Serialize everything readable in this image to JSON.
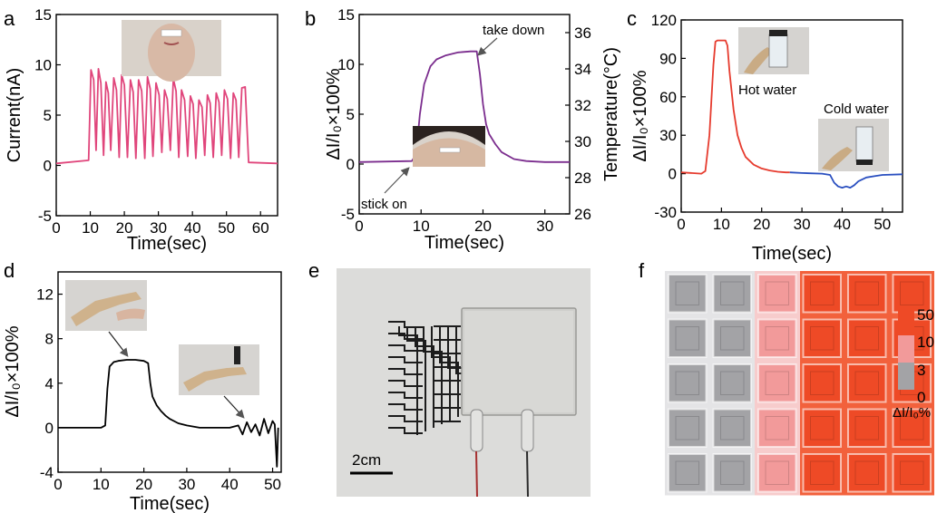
{
  "colors": {
    "pink": "#e0457b",
    "purple": "#7b2d8e",
    "red": "#e63b2e",
    "blue": "#2a4fc0",
    "black": "#000000",
    "grey_cell": "#a3a3a6",
    "pink_cell": "#f29a9a",
    "red_cell": "#ee4a26"
  },
  "panels": {
    "a": {
      "label": "a",
      "xlabel": "Time(sec)",
      "ylabel": "Current(nA)"
    },
    "b": {
      "label": "b",
      "xlabel": "Time(sec)",
      "ylabel_left": "ΔI/I₀×100%",
      "ylabel_right": "Temperature(°C)",
      "annotation_take_down": "take down",
      "annotation_stick_on": "stick on"
    },
    "c": {
      "label": "c",
      "xlabel": "Time(sec)",
      "ylabel": "ΔI/I₀×100%",
      "annotation_hot": "Hot water",
      "annotation_cold": "Cold water"
    },
    "d": {
      "label": "d",
      "xlabel": "Time(sec)",
      "ylabel": "ΔI/I₀×100%"
    },
    "e": {
      "label": "e",
      "scale_bar": "2cm"
    },
    "f": {
      "label": "f",
      "colorbar_ticks": [
        "50",
        "10",
        "3",
        "0"
      ],
      "colorbar_label": "ΔI/I₀%"
    }
  },
  "chart_data": [
    {
      "id": "a",
      "type": "line",
      "xlabel": "Time(sec)",
      "ylabel": "Current(nA)",
      "xlim": [
        0,
        65
      ],
      "ylim": [
        -5,
        15
      ],
      "xticks": [
        0,
        10,
        20,
        30,
        40,
        50,
        60
      ],
      "yticks": [
        -5,
        0,
        5,
        10,
        15
      ],
      "series": [
        {
          "color": "#e0457b",
          "x": [
            0,
            9.5,
            10.2,
            11,
            11.7,
            12.4,
            13.1,
            13.9,
            14.6,
            15.3,
            16,
            16.9,
            17.7,
            18.5,
            19.2,
            20,
            20.9,
            21.8,
            22.6,
            23.4,
            24.2,
            25.1,
            26,
            26.8,
            27.6,
            28.4,
            29.3,
            30.2,
            31,
            31.8,
            32.6,
            33.5,
            34.4,
            35.2,
            36,
            36.8,
            37.7,
            38.6,
            39.4,
            40.2,
            41,
            41.9,
            42.8,
            43.6,
            44.4,
            45.2,
            46.1,
            47,
            47.8,
            48.6,
            49.4,
            50.3,
            51.2,
            52,
            52.8,
            53.6,
            54.5,
            55.5,
            56.5,
            65
          ],
          "y": [
            0.2,
            0.5,
            9.5,
            8.5,
            1.5,
            9.6,
            8.2,
            1,
            8.3,
            7.2,
            1.5,
            8.7,
            7.5,
            0.8,
            9,
            8,
            0.8,
            8.5,
            7.3,
            0.7,
            8.5,
            7.4,
            0.7,
            8.8,
            7.6,
            0.9,
            8.2,
            7,
            1.3,
            7.5,
            6.6,
            1.5,
            8.6,
            7.4,
            0.8,
            7.5,
            6.5,
            0.9,
            6.9,
            6.1,
            0.7,
            6.5,
            5.8,
            1,
            7,
            6.2,
            0.8,
            7.2,
            6.3,
            1,
            7.5,
            6.6,
            0.7,
            7.2,
            6.5,
            0.8,
            7.7,
            7.8,
            0.3,
            0.2
          ]
        }
      ]
    },
    {
      "id": "b",
      "type": "line",
      "xlabel": "Time(sec)",
      "ylabel": "ΔI/I₀×100%",
      "ylabel_right": "Temperature(°C)",
      "xlim": [
        0,
        34
      ],
      "ylim": [
        -5,
        15
      ],
      "ylim_right": [
        26,
        37
      ],
      "xticks": [
        0,
        10,
        20,
        30
      ],
      "yticks": [
        -5,
        0,
        5,
        10,
        15
      ],
      "yticks_right": [
        26,
        28,
        30,
        32,
        34,
        36
      ],
      "series": [
        {
          "color": "#7b2d8e",
          "x": [
            0,
            8.5,
            9.2,
            9.8,
            10.5,
            11.5,
            12.5,
            14,
            16,
            18,
            19,
            19.5,
            20,
            20.5,
            21,
            22,
            23,
            25,
            27,
            30,
            34
          ],
          "y": [
            0.2,
            0.3,
            1,
            5,
            8,
            9.8,
            10.5,
            10.9,
            11.2,
            11.3,
            11.3,
            9,
            6,
            4,
            3,
            2,
            1.2,
            0.5,
            0.3,
            0.2,
            0.2
          ]
        }
      ]
    },
    {
      "id": "c",
      "type": "line",
      "xlabel": "Time(sec)",
      "ylabel": "ΔI/I₀×100%",
      "xlim": [
        0,
        55
      ],
      "ylim": [
        -30,
        120
      ],
      "xticks": [
        0,
        10,
        20,
        30,
        40,
        50
      ],
      "yticks": [
        -30,
        0,
        30,
        60,
        90,
        120
      ],
      "series": [
        {
          "name": "hot",
          "color": "#e63b2e",
          "x": [
            0,
            5,
            6,
            7,
            8,
            8.5,
            9,
            10,
            11,
            11.5,
            12,
            13,
            14,
            15,
            16,
            18,
            20,
            22,
            24,
            26,
            27
          ],
          "y": [
            1,
            0,
            2,
            30,
            85,
            103,
            104,
            104,
            104,
            100,
            80,
            50,
            30,
            20,
            13,
            7,
            4,
            2.5,
            1.5,
            1,
            1
          ]
        },
        {
          "name": "cold",
          "color": "#2a4fc0",
          "x": [
            27,
            30,
            35,
            37,
            38,
            39,
            40,
            41,
            42,
            43,
            44,
            46,
            48,
            50,
            55
          ],
          "y": [
            1,
            0.5,
            0,
            -1,
            -7,
            -10,
            -11,
            -10,
            -11,
            -9,
            -6,
            -3,
            -2,
            -1,
            -0.5
          ]
        }
      ]
    },
    {
      "id": "d",
      "type": "line",
      "xlabel": "Time(sec)",
      "ylabel": "ΔI/I₀×100%",
      "xlim": [
        0,
        52
      ],
      "ylim": [
        -4,
        14
      ],
      "xticks": [
        0,
        10,
        20,
        30,
        40,
        50
      ],
      "yticks": [
        -4,
        0,
        4,
        8,
        12
      ],
      "series": [
        {
          "color": "#000000",
          "x": [
            0,
            10,
            11,
            11.5,
            12,
            13,
            14,
            16,
            18,
            20,
            21,
            21.5,
            22,
            23,
            24,
            25,
            26,
            28,
            30,
            33,
            36,
            40,
            42,
            43,
            44,
            45,
            46,
            47,
            48,
            49,
            50,
            50.5,
            51,
            51.3
          ],
          "y": [
            0,
            0,
            0.2,
            3.5,
            5.5,
            5.9,
            6,
            6.1,
            6.1,
            6,
            5.8,
            4,
            2.8,
            2,
            1.5,
            1.1,
            0.8,
            0.4,
            0.2,
            0,
            0,
            0,
            0.2,
            -0.6,
            0.5,
            -0.4,
            0.3,
            -0.7,
            0.8,
            -0.5,
            0.6,
            0.3,
            -3.5,
            0
          ]
        }
      ]
    },
    {
      "id": "f",
      "type": "heatmap",
      "rows": 5,
      "cols": 6,
      "values": [
        [
          0,
          0,
          3,
          50,
          50,
          50
        ],
        [
          0,
          0,
          3,
          50,
          50,
          50
        ],
        [
          0,
          0,
          3,
          50,
          50,
          50
        ],
        [
          0,
          0,
          3,
          50,
          50,
          50
        ],
        [
          0,
          0,
          3,
          50,
          50,
          50
        ]
      ],
      "colorbar": {
        "ticks": [
          "50",
          "10",
          "3",
          "0"
        ],
        "colors": [
          "#ee4a26",
          "#f29a9a",
          "#a3a3a6"
        ]
      }
    }
  ]
}
